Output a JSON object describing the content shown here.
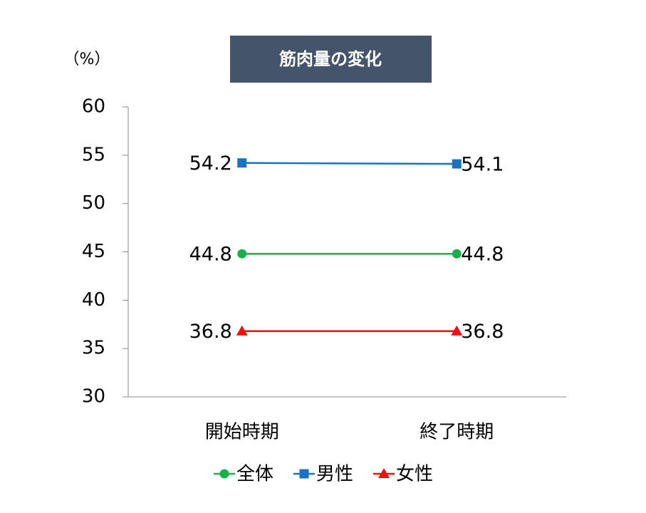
{
  "chart_data": {
    "type": "line",
    "title": "筋肉量の変化",
    "y_unit": "（%）",
    "categories": [
      "開始時期",
      "終了時期"
    ],
    "series": [
      {
        "name": "全体",
        "color": "#1aaf4b",
        "marker": "circle",
        "values": [
          44.8,
          44.8
        ]
      },
      {
        "name": "男性",
        "color": "#1a73c2",
        "marker": "square",
        "values": [
          54.2,
          54.1
        ]
      },
      {
        "name": "女性",
        "color": "#ee1010",
        "marker": "triangle",
        "values": [
          36.8,
          36.8
        ]
      }
    ],
    "ylim": [
      30,
      60
    ],
    "yticks": [
      30,
      35,
      40,
      45,
      50,
      55,
      60
    ],
    "grid": false
  }
}
